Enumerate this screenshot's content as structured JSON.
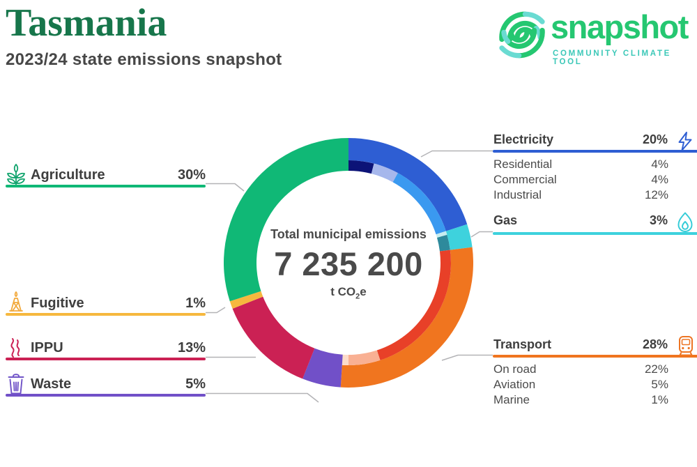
{
  "header": {
    "title": "Tasmania",
    "subtitle": "2023/24 state emissions snapshot"
  },
  "logo": {
    "brand": "snapshot",
    "tagline": "COMMUNITY CLIMATE TOOL",
    "brand_green": "#25c771",
    "brand_teal": "#6adbd2",
    "tagline_teal": "#3cc8b8"
  },
  "donut_center": {
    "label": "Total municipal emissions",
    "value": "7 235 200",
    "unit_main": "t CO",
    "unit_sub": "2",
    "unit_tail": "e"
  },
  "chart_data": {
    "type": "pie",
    "variant": "two-level donut",
    "title": "Total municipal emissions",
    "total_value": 7235200,
    "total_display": "7 235 200",
    "unit": "t CO2e",
    "start_angle_deg": 0,
    "direction": "clockwise",
    "legend_position": "left and right callout panels",
    "segments": [
      {
        "label": "Electricity",
        "value_pct": 20,
        "color": "#2e5ed3",
        "subsegments": [
          {
            "label": "Residential",
            "value_pct": 4,
            "color": "#0c1377"
          },
          {
            "label": "Commercial",
            "value_pct": 4,
            "color": "#a6b7ec"
          },
          {
            "label": "Industrial",
            "value_pct": 12,
            "color": "#3a99f0"
          }
        ]
      },
      {
        "label": "Gas",
        "value_pct": 3,
        "color": "#3ed2dd",
        "subsegments": [
          {
            "label": "",
            "value_pct": 0.6,
            "color": "#c6edf0"
          },
          {
            "label": "",
            "value_pct": 2.4,
            "color": "#2e8a9c"
          }
        ]
      },
      {
        "label": "Transport",
        "value_pct": 28,
        "color": "#f0751f",
        "subsegments": [
          {
            "label": "On road",
            "value_pct": 22,
            "color": "#e84028"
          },
          {
            "label": "Aviation",
            "value_pct": 5,
            "color": "#f9b093"
          },
          {
            "label": "Marine",
            "value_pct": 1,
            "color": "#fcdcca"
          }
        ]
      },
      {
        "label": "Waste",
        "value_pct": 5,
        "color": "#7150c8"
      },
      {
        "label": "IPPU",
        "value_pct": 13,
        "color": "#cb2154"
      },
      {
        "label": "Fugitive",
        "value_pct": 1,
        "color": "#f6b83e"
      },
      {
        "label": "Agriculture",
        "value_pct": 30,
        "color": "#10b876"
      }
    ]
  },
  "left_panel": {
    "agriculture": {
      "label": "Agriculture",
      "pct": "30%",
      "color": "#10b876"
    },
    "fugitive": {
      "label": "Fugitive",
      "pct": "1%",
      "color": "#f6b83e"
    },
    "ippu": {
      "label": "IPPU",
      "pct": "13%",
      "color": "#cb2154"
    },
    "waste": {
      "label": "Waste",
      "pct": "5%",
      "color": "#7150c8"
    }
  },
  "right_panel": {
    "electricity": {
      "label": "Electricity",
      "pct": "20%",
      "color": "#2e5ed3",
      "subs": [
        {
          "label": "Residential",
          "pct": "4%"
        },
        {
          "label": "Commercial",
          "pct": "4%"
        },
        {
          "label": "Industrial",
          "pct": "12%"
        }
      ]
    },
    "gas": {
      "label": "Gas",
      "pct": "3%",
      "color": "#3ed2dd"
    },
    "transport": {
      "label": "Transport",
      "pct": "28%",
      "color": "#f0751f",
      "subs": [
        {
          "label": "On road",
          "pct": "22%"
        },
        {
          "label": "Aviation",
          "pct": "5%"
        },
        {
          "label": "Marine",
          "pct": "1%"
        }
      ]
    }
  }
}
